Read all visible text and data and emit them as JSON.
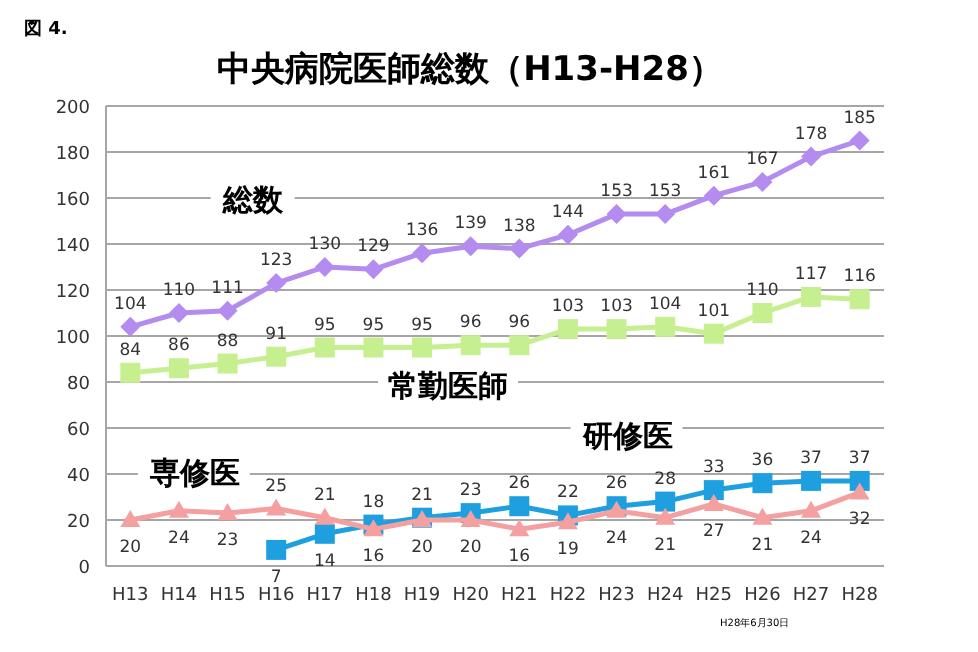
{
  "chart_data": {
    "type": "line",
    "title": "中央病院医師総数（H13-H28）",
    "categories": [
      "H13",
      "H14",
      "H15",
      "H16",
      "H17",
      "H18",
      "H19",
      "H20",
      "H21",
      "H22",
      "H23",
      "H24",
      "H25",
      "H26",
      "H27",
      "H28"
    ],
    "series": [
      {
        "name": "総数",
        "color": "#b48cf0",
        "marker": "diamond",
        "values": [
          104,
          110,
          111,
          123,
          130,
          129,
          136,
          139,
          138,
          144,
          153,
          153,
          161,
          167,
          178,
          185
        ]
      },
      {
        "name": "常勤医師",
        "color": "#c6f090",
        "marker": "square",
        "values": [
          84,
          86,
          88,
          91,
          95,
          95,
          95,
          96,
          96,
          103,
          103,
          104,
          101,
          110,
          117,
          116
        ]
      },
      {
        "name": "研修医",
        "color": "#1ea0e0",
        "marker": "square",
        "values": [
          null,
          null,
          null,
          7,
          14,
          18,
          21,
          23,
          26,
          22,
          26,
          28,
          33,
          36,
          37,
          37
        ]
      },
      {
        "name": "専修医",
        "color": "#f4a0a0",
        "marker": "triangle",
        "values": [
          20,
          24,
          23,
          25,
          21,
          16,
          20,
          20,
          16,
          19,
          24,
          21,
          27,
          21,
          24,
          32
        ]
      }
    ],
    "ylim": [
      0,
      200
    ],
    "yticks": [
      0,
      20,
      40,
      60,
      80,
      100,
      120,
      140,
      160,
      180,
      200
    ],
    "grid": "y",
    "legend": false,
    "data_labels": true,
    "annotations": [
      "図 4.",
      "H28年6月30日"
    ]
  }
}
